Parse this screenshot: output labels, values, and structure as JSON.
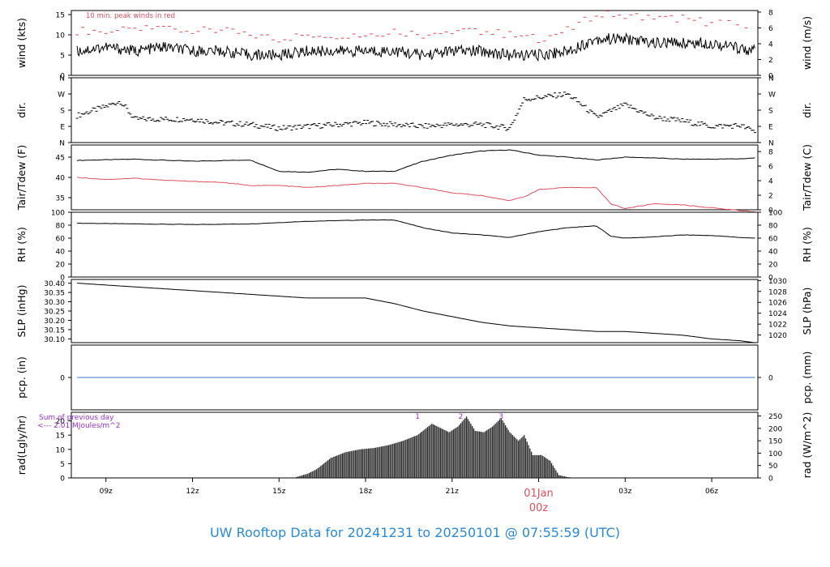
{
  "title": "UW Rooftop Data for 20241231  to  20250101 @ 07:55:59  (UTC)",
  "colors": {
    "red": "#e0505e",
    "purple": "#9b2fd8",
    "blue": "#3a6fd0",
    "title": "#2a8ad8",
    "black": "#000000"
  },
  "time_axis": {
    "ticks": [
      "09z",
      "12z",
      "15z",
      "18z",
      "21z",
      "00z",
      "03z",
      "06z"
    ],
    "date_label": "01Jan",
    "date_label_time": "00z"
  },
  "chart_data": [
    {
      "id": "wind",
      "type": "line",
      "ylabel_left": "wind (kts)",
      "ylabel_right": "wind (m/s)",
      "left_ticks": [
        "0",
        "5",
        "10",
        "15"
      ],
      "right_ticks": [
        "0",
        "2",
        "4",
        "6",
        "8"
      ],
      "annotation": "10 min. peak winds in red",
      "ylim": [
        0,
        16
      ],
      "series": [
        {
          "name": "10 min. peak winds",
          "x": [
            8,
            9,
            10,
            11,
            12,
            13,
            14,
            15,
            16,
            17,
            18,
            19,
            20,
            21,
            22,
            23,
            24,
            25,
            26,
            27,
            28,
            29,
            30,
            31.5
          ],
          "y": [
            11,
            11,
            11,
            12,
            11,
            11,
            10,
            9,
            10,
            10,
            10,
            11,
            10,
            11,
            11,
            10,
            9,
            11,
            15,
            15,
            14,
            14,
            13,
            12
          ]
        },
        {
          "name": "",
          "x": [
            8,
            9,
            10,
            11,
            12,
            13,
            14,
            15,
            16,
            17,
            18,
            19,
            20,
            21,
            22,
            23,
            24,
            25,
            26,
            27,
            28,
            29,
            30,
            31.5
          ],
          "y": [
            6,
            7,
            6,
            7,
            6,
            6,
            5,
            5,
            6,
            6,
            6,
            6,
            5,
            6,
            6,
            5,
            5,
            6,
            9,
            9,
            8,
            8,
            8,
            6
          ]
        }
      ]
    },
    {
      "id": "dir",
      "type": "scatter",
      "ylabel_left": "dir.",
      "ylabel_right": "dir.",
      "left_ticks": [
        "N",
        "E",
        "S",
        "W",
        "N"
      ],
      "right_ticks": [
        "N",
        "E",
        "S",
        "W",
        "N"
      ],
      "ylim": [
        0,
        360
      ],
      "series": [
        {
          "name": "",
          "x": [
            8,
            9,
            9.5,
            10,
            11,
            12,
            13,
            14,
            15,
            16,
            17,
            18,
            19,
            20,
            21,
            22,
            23,
            23.5,
            24,
            25,
            25.5,
            26,
            27,
            28,
            29,
            30,
            31,
            31.5
          ],
          "y": [
            150,
            200,
            230,
            130,
            130,
            130,
            110,
            100,
            80,
            90,
            100,
            110,
            100,
            90,
            100,
            100,
            80,
            240,
            250,
            270,
            210,
            140,
            210,
            140,
            120,
            90,
            95,
            60
          ]
        }
      ]
    },
    {
      "id": "temp",
      "type": "line",
      "ylabel_left": "Tair/Tdew (F)",
      "ylabel_right": "Tair/Tdew (C)",
      "left_ticks": [
        "35",
        "40",
        "45"
      ],
      "right_ticks": [
        "0",
        "2",
        "4",
        "6",
        "8"
      ],
      "ylim": [
        32,
        48
      ],
      "series": [
        {
          "name": "Tair",
          "x": [
            8,
            10,
            12,
            14,
            15,
            16,
            17,
            18,
            19,
            20,
            21,
            22,
            23,
            24,
            25,
            26,
            27,
            28,
            29,
            30,
            31,
            31.5
          ],
          "y": [
            44.2,
            44.5,
            44.0,
            44.3,
            41.5,
            41.3,
            42.0,
            41.5,
            41.5,
            44.0,
            45.5,
            46.5,
            46.8,
            45.5,
            45.0,
            44.3,
            45.0,
            44.8,
            44.5,
            44.5,
            44.6,
            44.8
          ]
        },
        {
          "name": "Tdew",
          "x": [
            8,
            9,
            10,
            11,
            12,
            13,
            14,
            15,
            16,
            17,
            18,
            19,
            20,
            21,
            22,
            23,
            23.5,
            24,
            25,
            26,
            26.5,
            27,
            28,
            29,
            30,
            31,
            31.5
          ],
          "y": [
            40.0,
            39.5,
            39.8,
            39.3,
            39.0,
            38.8,
            38.0,
            38.0,
            37.5,
            38.0,
            38.5,
            38.5,
            37.5,
            36.2,
            35.5,
            34.3,
            35.2,
            37.0,
            37.5,
            37.5,
            33.5,
            32.3,
            33.5,
            33.2,
            32.5,
            31.8,
            31.5
          ]
        }
      ]
    },
    {
      "id": "rh",
      "type": "line",
      "ylabel_left": "RH (%)",
      "ylabel_right": "RH (%)",
      "left_ticks": [
        "0",
        "20",
        "40",
        "60",
        "80",
        "100"
      ],
      "right_ticks": [
        "0",
        "20",
        "40",
        "60",
        "80",
        "100"
      ],
      "ylim": [
        0,
        100
      ],
      "series": [
        {
          "name": "",
          "x": [
            8,
            10,
            12,
            14,
            16,
            18,
            19,
            20,
            21,
            22,
            23,
            24,
            25,
            26,
            26.5,
            27,
            28,
            29,
            30,
            31,
            31.5
          ],
          "y": [
            83,
            82,
            81,
            82,
            86,
            88,
            88,
            76,
            68,
            65,
            61,
            70,
            76,
            79,
            63,
            60,
            62,
            65,
            64,
            61,
            60
          ]
        }
      ]
    },
    {
      "id": "slp",
      "type": "line",
      "ylabel_left": "SLP (inHg)",
      "ylabel_right": "SLP (hPa)",
      "left_ticks": [
        "30.10",
        "30.15",
        "30.20",
        "30.25",
        "30.30",
        "30.35",
        "30.40"
      ],
      "right_ticks": [
        "1020",
        "1022",
        "1024",
        "1026",
        "1028",
        "1030"
      ],
      "ylim": [
        30.08,
        30.42
      ],
      "series": [
        {
          "name": "",
          "x": [
            8,
            10,
            12,
            14,
            16,
            17,
            18,
            19,
            20,
            21,
            22,
            23,
            24,
            25,
            26,
            27,
            28,
            29,
            30,
            31,
            31.5
          ],
          "y": [
            30.4,
            30.38,
            30.36,
            30.34,
            30.32,
            30.32,
            30.32,
            30.29,
            30.25,
            30.22,
            30.19,
            30.17,
            30.16,
            30.15,
            30.14,
            30.14,
            30.13,
            30.12,
            30.1,
            30.09,
            30.08
          ]
        }
      ]
    },
    {
      "id": "pcp",
      "type": "line",
      "ylabel_left": "pcp. (in)",
      "ylabel_right": "pcp. (mm)",
      "left_ticks": [
        "0"
      ],
      "right_ticks": [
        "0"
      ],
      "ylim": [
        -1,
        1
      ],
      "series": [
        {
          "name": "",
          "x": [
            8,
            31.5
          ],
          "y": [
            0,
            0
          ]
        }
      ]
    },
    {
      "id": "rad",
      "type": "area",
      "ylabel_left": "rad(Lgly/hr)",
      "ylabel_right": "rad (W/m^2)",
      "left_ticks": [
        "0",
        "5",
        "10",
        "15",
        "20"
      ],
      "right_ticks": [
        "0",
        "50",
        "100",
        "150",
        "200",
        "250"
      ],
      "annotation": "Sum of previous day",
      "annotation2": "<--- 2.01 MJoules/m^2",
      "markers": [
        {
          "label": "1",
          "x": 19.8
        },
        {
          "label": "2",
          "x": 21.3
        },
        {
          "label": "3",
          "x": 22.7
        }
      ],
      "ylim": [
        0,
        23
      ],
      "series": [
        {
          "name": "",
          "x": [
            15.5,
            16.0,
            16.3,
            16.8,
            17.3,
            17.8,
            18.3,
            18.8,
            19.3,
            19.8,
            20.3,
            20.6,
            20.9,
            21.2,
            21.5,
            21.8,
            22.1,
            22.4,
            22.7,
            23.0,
            23.3,
            23.5,
            23.8,
            24.1,
            24.4,
            24.7,
            25.0,
            25.3
          ],
          "y": [
            0,
            1.5,
            3,
            7,
            9,
            10,
            10.5,
            11.5,
            13,
            15,
            19,
            17.5,
            16,
            18,
            21.5,
            16.5,
            16,
            18,
            21,
            16,
            13,
            15,
            8,
            8,
            6,
            1,
            0.3,
            0
          ]
        }
      ]
    }
  ]
}
